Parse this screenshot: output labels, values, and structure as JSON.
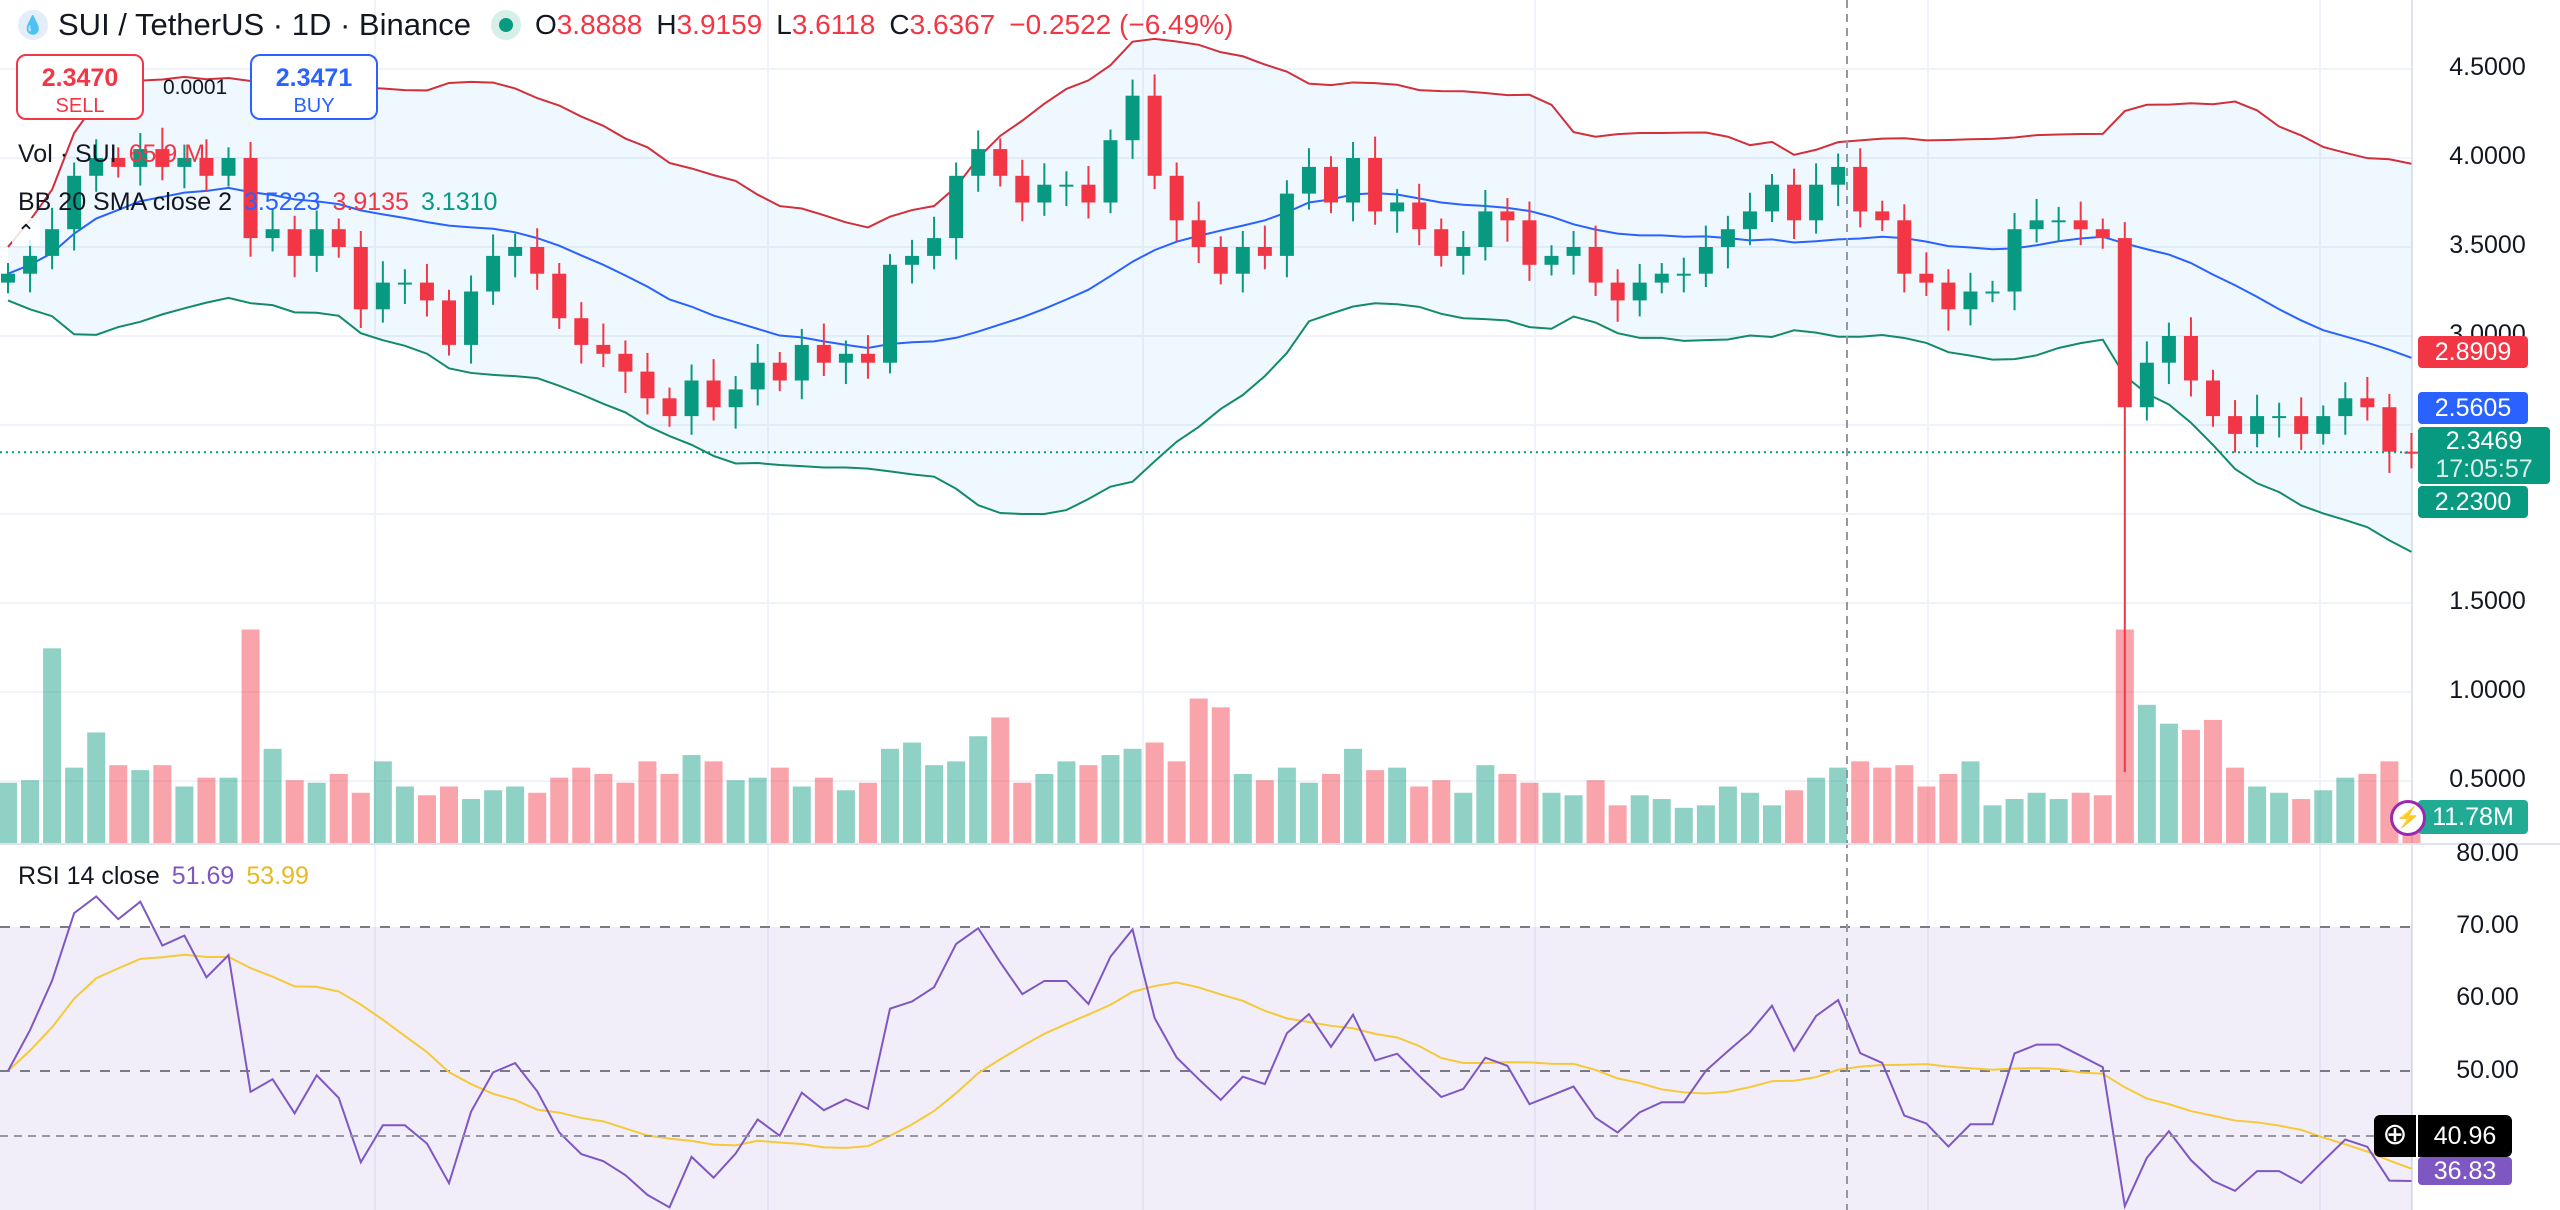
{
  "header": {
    "symbol": "SUI / TetherUS · 1D · Binance",
    "o_label": "O",
    "o": "3.8888",
    "h_label": "H",
    "h": "3.9159",
    "l_label": "L",
    "l": "3.6118",
    "c_label": "C",
    "c": "3.6367",
    "change": "−0.2522 (−6.49%)",
    "logo_icon": "sui-drop-icon",
    "market_status_icon": "market-open-dot"
  },
  "quote": {
    "sell_price": "2.3470",
    "sell_label": "SELL",
    "spread": "0.0001",
    "buy_price": "2.3471",
    "buy_label": "BUY"
  },
  "legends": {
    "vol_label": "Vol · SUI",
    "vol_value": "65.9 M",
    "bb_label": "BB 20 SMA close 2",
    "bb_basis": "3.5223",
    "bb_upper": "3.9135",
    "bb_lower": "3.1310",
    "rsi_label": "RSI 14 close",
    "rsi_value": "51.69",
    "rsi_ma": "53.99"
  },
  "price_axis": [
    "4.5000",
    "4.0000",
    "3.5000",
    "3.0000",
    "1.5000",
    "1.0000",
    "0.5000"
  ],
  "rsi_axis": [
    "80.00",
    "70.00",
    "60.00",
    "50.00"
  ],
  "tags": {
    "bb_upper": "2.8909",
    "bb_basis": "2.5605",
    "last_price": "2.3469",
    "countdown": "17:05:57",
    "bb_lower": "2.2300",
    "volume": "11.78M",
    "rsi_crosshair": "40.96",
    "rsi_ma": "36.83"
  },
  "colors": {
    "up": "#089981",
    "down": "#F23645",
    "bb_basis": "#2962FF",
    "bb_upper": "#D0303C",
    "bb_lower": "#138A6A",
    "rsi": "#7E57C2",
    "rsi_ma": "#F5C93A"
  },
  "chart_data": {
    "type": "candlestick",
    "price_range": [
      0.5,
      4.5
    ],
    "rsi_range": [
      30,
      80
    ],
    "rsi_levels": [
      70,
      50,
      30
    ],
    "closes": [
      3.35,
      3.45,
      3.6,
      3.9,
      4.0,
      3.95,
      4.05,
      3.95,
      4.0,
      3.9,
      4.0,
      3.55,
      3.6,
      3.45,
      3.6,
      3.5,
      3.15,
      3.3,
      3.3,
      3.2,
      2.95,
      3.25,
      3.45,
      3.5,
      3.35,
      3.1,
      2.95,
      2.9,
      2.8,
      2.65,
      2.55,
      2.75,
      2.6,
      2.7,
      2.85,
      2.75,
      2.95,
      2.85,
      2.9,
      2.85,
      3.4,
      3.45,
      3.55,
      3.9,
      4.05,
      3.9,
      3.75,
      3.85,
      3.85,
      3.75,
      4.1,
      4.35,
      3.9,
      3.65,
      3.5,
      3.35,
      3.5,
      3.45,
      3.8,
      3.95,
      3.75,
      4.0,
      3.7,
      3.75,
      3.6,
      3.45,
      3.5,
      3.7,
      3.65,
      3.4,
      3.45,
      3.5,
      3.3,
      3.2,
      3.3,
      3.35,
      3.35,
      3.5,
      3.6,
      3.7,
      3.85,
      3.65,
      3.85,
      3.95,
      3.7,
      3.65,
      3.35,
      3.3,
      3.15,
      3.25,
      3.25,
      3.6,
      3.65,
      3.65,
      3.6,
      3.55,
      2.6,
      2.85,
      3.0,
      2.75,
      2.55,
      2.45,
      2.55,
      2.55,
      2.45,
      2.55,
      2.65,
      2.6,
      2.35,
      2.3469
    ],
    "notable_lows": {
      "96": 0.55
    },
    "volumes_m": [
      48,
      50,
      155,
      60,
      88,
      62,
      58,
      62,
      45,
      52,
      52,
      170,
      75,
      50,
      48,
      55,
      40,
      65,
      45,
      38,
      45,
      35,
      42,
      45,
      40,
      52,
      60,
      55,
      48,
      65,
      55,
      70,
      65,
      50,
      52,
      60,
      45,
      52,
      42,
      48,
      75,
      80,
      62,
      65,
      85,
      100,
      48,
      55,
      65,
      62,
      70,
      75,
      80,
      65,
      115,
      108,
      55,
      50,
      60,
      48,
      55,
      75,
      58,
      60,
      45,
      50,
      40,
      62,
      55,
      48,
      40,
      38,
      50,
      30,
      38,
      35,
      28,
      30,
      45,
      40,
      30,
      42,
      52,
      60,
      65,
      60,
      62,
      45,
      55,
      65,
      30,
      35,
      40,
      35,
      40,
      38,
      170,
      110,
      95,
      90,
      98,
      60,
      45,
      40,
      35,
      42,
      52,
      55,
      65,
      11.78
    ]
  }
}
